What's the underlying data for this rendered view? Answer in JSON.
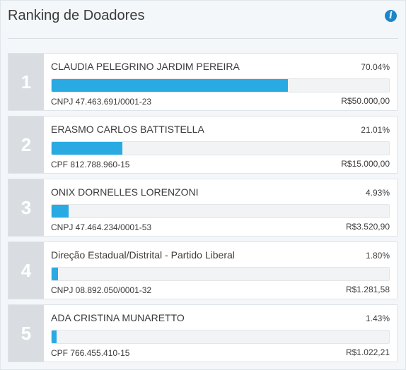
{
  "header": {
    "title": "Ranking de Doadores",
    "info_icon": "info-circle-icon"
  },
  "colors": {
    "bar_fill": "#2aaae2",
    "rank_bg": "#d9dde1",
    "info_icon": "#1d86c8"
  },
  "donors": [
    {
      "rank": "1",
      "name": "CLAUDIA PELEGRINO JARDIM PEREIRA",
      "percent": "70.04%",
      "share": 0.7004,
      "document": "CNPJ 47.463.691/0001-23",
      "amount": "R$50.000,00"
    },
    {
      "rank": "2",
      "name": "ERASMO CARLOS BATTISTELLA",
      "percent": "21.01%",
      "share": 0.2101,
      "document": "CPF 812.788.960-15",
      "amount": "R$15.000,00"
    },
    {
      "rank": "3",
      "name": "ONIX DORNELLES LORENZONI",
      "percent": "4.93%",
      "share": 0.0493,
      "document": "CNPJ 47.464.234/0001-53",
      "amount": "R$3.520,90"
    },
    {
      "rank": "4",
      "name": "Direção Estadual/Distrital - Partido Liberal",
      "percent": "1.80%",
      "share": 0.018,
      "document": "CNPJ 08.892.050/0001-32",
      "amount": "R$1.281,58"
    },
    {
      "rank": "5",
      "name": "ADA CRISTINA MUNARETTO",
      "percent": "1.43%",
      "share": 0.0143,
      "document": "CPF 766.455.410-15",
      "amount": "R$1.022,21"
    }
  ]
}
